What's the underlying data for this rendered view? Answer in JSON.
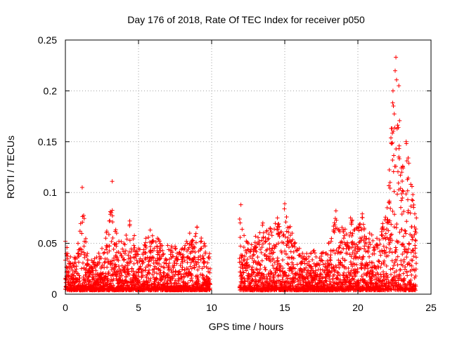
{
  "chart_data": {
    "type": "scatter",
    "title": "Day 176 of 2018, Rate Of TEC Index for receiver p050",
    "xlabel": "GPS time / hours",
    "ylabel": "ROTI / TECUs",
    "xlim": [
      0,
      25
    ],
    "ylim": [
      0,
      0.25
    ],
    "xticks": [
      0,
      5,
      10,
      15,
      20,
      25
    ],
    "yticks": [
      0,
      0.05,
      0.1,
      0.15,
      0.2,
      0.25
    ],
    "xtick_labels": [
      "0",
      "5",
      "10",
      "15",
      "20",
      "25"
    ],
    "ytick_labels": [
      "0",
      "0.05",
      "0.1",
      "0.15",
      "0.2",
      "0.25"
    ],
    "grid": true,
    "marker": "+",
    "color": "#ff0000",
    "data_gap_hours": [
      9.9,
      11.9
    ],
    "series": [
      {
        "name": "ROTI",
        "envelope": [
          {
            "x": 0.0,
            "y": 0.052
          },
          {
            "x": 0.5,
            "y": 0.03
          },
          {
            "x": 1.0,
            "y": 0.062
          },
          {
            "x": 1.15,
            "y": 0.105
          },
          {
            "x": 1.5,
            "y": 0.04
          },
          {
            "x": 2.0,
            "y": 0.035
          },
          {
            "x": 2.5,
            "y": 0.045
          },
          {
            "x": 3.0,
            "y": 0.072
          },
          {
            "x": 3.2,
            "y": 0.111
          },
          {
            "x": 3.5,
            "y": 0.06
          },
          {
            "x": 4.0,
            "y": 0.05
          },
          {
            "x": 4.4,
            "y": 0.072
          },
          {
            "x": 5.0,
            "y": 0.045
          },
          {
            "x": 5.5,
            "y": 0.055
          },
          {
            "x": 5.8,
            "y": 0.063
          },
          {
            "x": 6.3,
            "y": 0.055
          },
          {
            "x": 7.0,
            "y": 0.048
          },
          {
            "x": 7.5,
            "y": 0.047
          },
          {
            "x": 8.0,
            "y": 0.045
          },
          {
            "x": 8.5,
            "y": 0.06
          },
          {
            "x": 9.0,
            "y": 0.066
          },
          {
            "x": 9.5,
            "y": 0.05
          },
          {
            "x": 9.85,
            "y": 0.04
          },
          {
            "x": 12.0,
            "y": 0.088
          },
          {
            "x": 12.5,
            "y": 0.05
          },
          {
            "x": 13.0,
            "y": 0.057
          },
          {
            "x": 13.5,
            "y": 0.07
          },
          {
            "x": 14.0,
            "y": 0.065
          },
          {
            "x": 14.5,
            "y": 0.075
          },
          {
            "x": 15.0,
            "y": 0.089
          },
          {
            "x": 15.5,
            "y": 0.06
          },
          {
            "x": 16.0,
            "y": 0.045
          },
          {
            "x": 16.5,
            "y": 0.04
          },
          {
            "x": 17.0,
            "y": 0.043
          },
          {
            "x": 17.5,
            "y": 0.04
          },
          {
            "x": 18.0,
            "y": 0.05
          },
          {
            "x": 18.5,
            "y": 0.082
          },
          {
            "x": 19.0,
            "y": 0.063
          },
          {
            "x": 19.5,
            "y": 0.075
          },
          {
            "x": 20.0,
            "y": 0.065
          },
          {
            "x": 20.3,
            "y": 0.079
          },
          {
            "x": 20.8,
            "y": 0.06
          },
          {
            "x": 21.3,
            "y": 0.055
          },
          {
            "x": 22.0,
            "y": 0.085
          },
          {
            "x": 22.4,
            "y": 0.2
          },
          {
            "x": 22.6,
            "y": 0.233
          },
          {
            "x": 22.8,
            "y": 0.205
          },
          {
            "x": 23.0,
            "y": 0.12
          },
          {
            "x": 23.3,
            "y": 0.15
          },
          {
            "x": 23.7,
            "y": 0.106
          },
          {
            "x": 24.0,
            "y": 0.075
          }
        ]
      }
    ]
  }
}
